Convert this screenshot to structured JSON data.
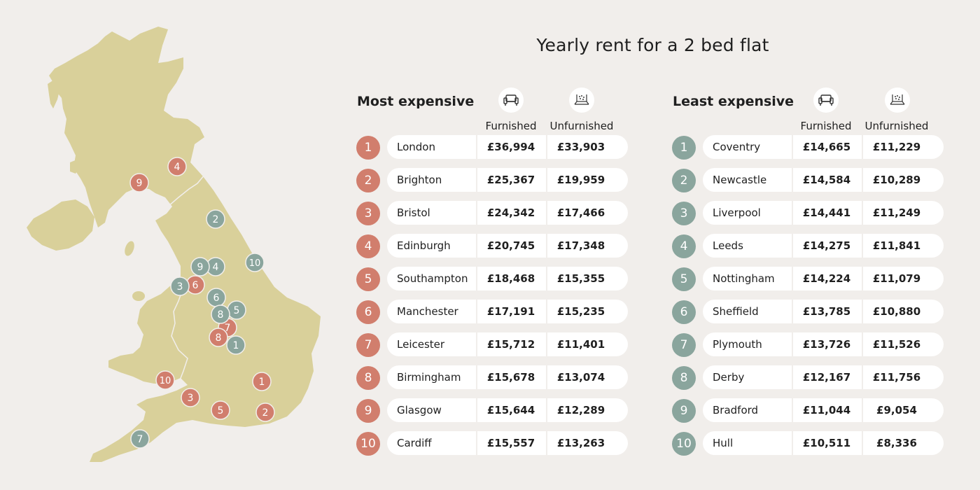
{
  "title": "Yearly rent for a 2 bed flat",
  "colors": {
    "background": "#f1eeeb",
    "land": "#d9d09a",
    "most_expensive": "#d17e6d",
    "least_expensive": "#8aa59d"
  },
  "icons": {
    "furnished": "sofa-icon",
    "unfurnished": "empty-room-icon"
  },
  "most_expensive": {
    "heading": "Most expensive",
    "col_furnished": "Furnished",
    "col_unfurnished": "Unfurnished",
    "rows": [
      {
        "rank": "1",
        "city": "London",
        "furnished": "£36,994",
        "unfurnished": "£33,903"
      },
      {
        "rank": "2",
        "city": "Brighton",
        "furnished": "£25,367",
        "unfurnished": "£19,959"
      },
      {
        "rank": "3",
        "city": "Bristol",
        "furnished": "£24,342",
        "unfurnished": "£17,466"
      },
      {
        "rank": "4",
        "city": "Edinburgh",
        "furnished": "£20,745",
        "unfurnished": "£17,348"
      },
      {
        "rank": "5",
        "city": "Southampton",
        "furnished": "£18,468",
        "unfurnished": "£15,355"
      },
      {
        "rank": "6",
        "city": "Manchester",
        "furnished": "£17,191",
        "unfurnished": "£15,235"
      },
      {
        "rank": "7",
        "city": "Leicester",
        "furnished": "£15,712",
        "unfurnished": "£11,401"
      },
      {
        "rank": "8",
        "city": "Birmingham",
        "furnished": "£15,678",
        "unfurnished": "£13,074"
      },
      {
        "rank": "9",
        "city": "Glasgow",
        "furnished": "£15,644",
        "unfurnished": "£12,289"
      },
      {
        "rank": "10",
        "city": "Cardiff",
        "furnished": "£15,557",
        "unfurnished": "£13,263"
      }
    ]
  },
  "least_expensive": {
    "heading": "Least expensive",
    "col_furnished": "Furnished",
    "col_unfurnished": "Unfurnished",
    "rows": [
      {
        "rank": "1",
        "city": "Coventry",
        "furnished": "£14,665",
        "unfurnished": "£11,229"
      },
      {
        "rank": "2",
        "city": "Newcastle",
        "furnished": "£14,584",
        "unfurnished": "£10,289"
      },
      {
        "rank": "3",
        "city": "Liverpool",
        "furnished": "£14,441",
        "unfurnished": "£11,249"
      },
      {
        "rank": "4",
        "city": "Leeds",
        "furnished": "£14,275",
        "unfurnished": "£11,841"
      },
      {
        "rank": "5",
        "city": "Nottingham",
        "furnished": "£14,224",
        "unfurnished": "£11,079"
      },
      {
        "rank": "6",
        "city": "Sheffield",
        "furnished": "£13,785",
        "unfurnished": "£10,880"
      },
      {
        "rank": "7",
        "city": "Plymouth",
        "furnished": "£13,726",
        "unfurnished": "£11,526"
      },
      {
        "rank": "8",
        "city": "Derby",
        "furnished": "£12,167",
        "unfurnished": "£11,756"
      },
      {
        "rank": "9",
        "city": "Bradford",
        "furnished": "£11,044",
        "unfurnished": "£9,054"
      },
      {
        "rank": "10",
        "city": "Hull",
        "furnished": "£10,511",
        "unfurnished": "£8,336"
      }
    ]
  },
  "map": {
    "markers": [
      {
        "label": "1",
        "group": "most"
      },
      {
        "label": "2",
        "group": "most"
      },
      {
        "label": "3",
        "group": "most"
      },
      {
        "label": "4",
        "group": "most"
      },
      {
        "label": "5",
        "group": "most"
      },
      {
        "label": "6",
        "group": "most"
      },
      {
        "label": "7",
        "group": "most"
      },
      {
        "label": "8",
        "group": "most"
      },
      {
        "label": "9",
        "group": "most"
      },
      {
        "label": "10",
        "group": "most"
      },
      {
        "label": "1",
        "group": "least"
      },
      {
        "label": "2",
        "group": "least"
      },
      {
        "label": "3",
        "group": "least"
      },
      {
        "label": "4",
        "group": "least"
      },
      {
        "label": "5",
        "group": "least"
      },
      {
        "label": "6",
        "group": "least"
      },
      {
        "label": "7",
        "group": "least"
      },
      {
        "label": "8",
        "group": "least"
      },
      {
        "label": "9",
        "group": "least"
      },
      {
        "label": "10",
        "group": "least"
      }
    ]
  }
}
